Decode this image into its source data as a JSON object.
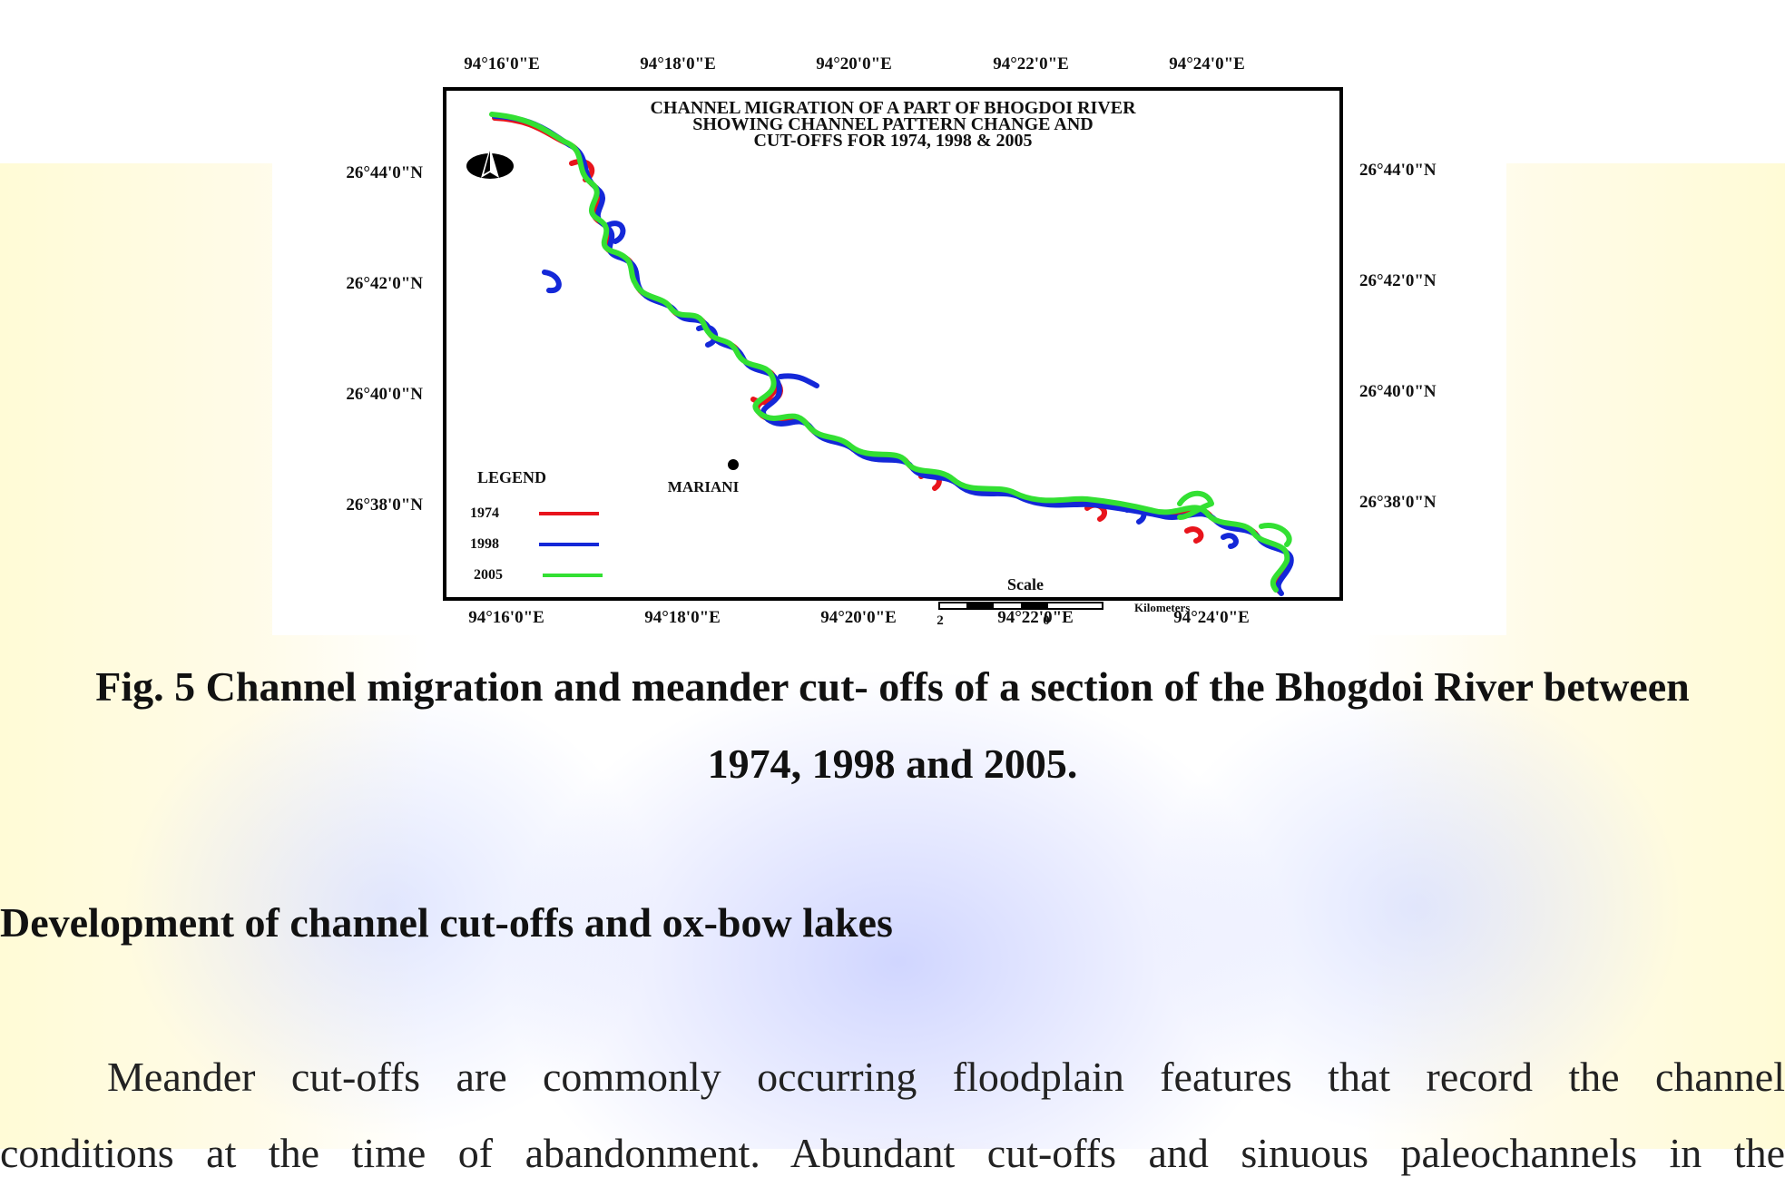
{
  "map": {
    "title_lines": [
      "CHANNEL MIGRATION OF A PART OF BHOGDOI RIVER",
      "SHOWING CHANNEL PATTERN CHANGE AND",
      "CUT-OFFS FOR 1974, 1998 & 2005"
    ],
    "top_longitudes": [
      "94°16'0\"E",
      "94°18'0\"E",
      "94°20'0\"E",
      "94°22'0\"E",
      "94°24'0\"E"
    ],
    "bottom_longitudes": [
      "94°16'0\"E",
      "94°18'0\"E",
      "94°20'0\"E",
      "94°22'0\"E",
      "94°24'0\"E"
    ],
    "left_latitudes": [
      "26°44'0\"N",
      "26°42'0\"N",
      "26°40'0\"N",
      "26°38'0\"N"
    ],
    "right_latitudes": [
      "26°44'0\"N",
      "26°42'0\"N",
      "26°40'0\"N",
      "26°38'0\"N"
    ],
    "place_label": "MARIANI",
    "legend": {
      "title": "LEGEND",
      "items": [
        {
          "label": "1974",
          "color": "#e8141c"
        },
        {
          "label": "1998",
          "color": "#1428d8"
        },
        {
          "label": "2005",
          "color": "#33e033"
        }
      ]
    },
    "scale": {
      "title": "Scale",
      "tick_labels": [
        "2",
        "0"
      ],
      "unit": "Kilometers"
    },
    "north_arrow_icon": "north-arrow-icon"
  },
  "caption": {
    "line1": "Fig. 5 Channel migration and meander cut- offs of a section of the Bhogdoi River between",
    "line2": "1974, 1998 and 2005."
  },
  "section": {
    "heading": "Development of channel cut-offs and ox-bow lakes",
    "paragraph_line1": "Meander cut-offs are commonly occurring floodplain features that record the channel",
    "paragraph_line2": "conditions at the time of abandonment. Abundant cut-offs and sinuous paleochannels in the"
  }
}
